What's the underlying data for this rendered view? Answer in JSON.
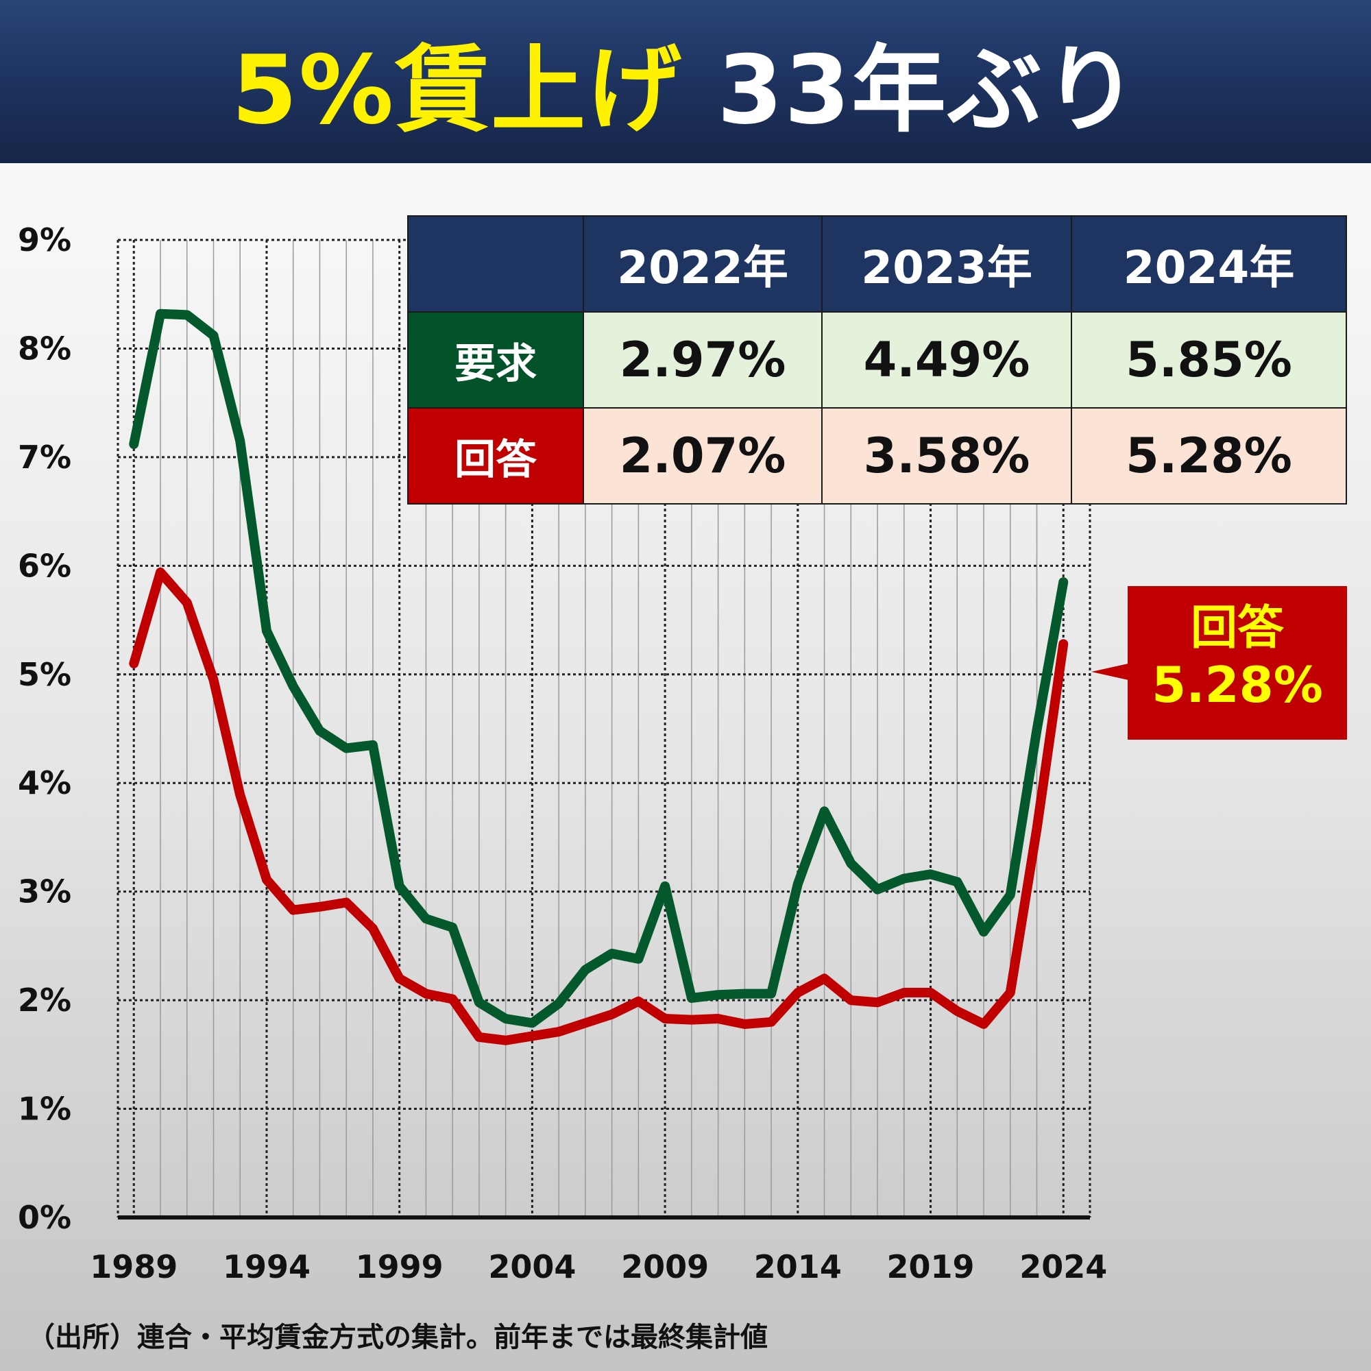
{
  "banner": {
    "title_highlight": "5%賃上げ",
    "title_rest": "33年ぶり"
  },
  "table": {
    "years": [
      "2022年",
      "2023年",
      "2024年"
    ],
    "rows": [
      {
        "label": "要求",
        "values": [
          "2.97%",
          "4.49%",
          "5.85%"
        ]
      },
      {
        "label": "回答",
        "values": [
          "2.07%",
          "3.58%",
          "5.28%"
        ]
      }
    ]
  },
  "callout": {
    "label": "回答",
    "value": "5.28%"
  },
  "source": "（出所）連合・平均賃金方式の集計。前年までは最終集計値",
  "colors": {
    "request": "#03592c",
    "answer": "#c00000",
    "banner": "#1e3461",
    "highlight": "#fff200"
  },
  "chart_data": {
    "type": "line",
    "x": [
      1989,
      1990,
      1991,
      1992,
      1993,
      1994,
      1995,
      1996,
      1997,
      1998,
      1999,
      2000,
      2001,
      2002,
      2003,
      2004,
      2005,
      2006,
      2007,
      2008,
      2009,
      2010,
      2011,
      2012,
      2013,
      2014,
      2015,
      2016,
      2017,
      2018,
      2019,
      2020,
      2021,
      2022,
      2023,
      2024
    ],
    "series": [
      {
        "name": "要求",
        "color": "#03592c",
        "values": [
          7.12,
          8.32,
          8.31,
          8.12,
          7.15,
          5.4,
          4.89,
          4.48,
          4.32,
          4.35,
          3.05,
          2.75,
          2.67,
          1.98,
          1.83,
          1.79,
          1.97,
          2.28,
          2.43,
          2.38,
          3.05,
          2.02,
          2.05,
          2.06,
          2.06,
          3.07,
          3.74,
          3.26,
          3.02,
          3.12,
          3.16,
          3.09,
          2.63,
          2.97,
          4.49,
          5.85
        ]
      },
      {
        "name": "回答",
        "color": "#c00000",
        "values": [
          5.1,
          5.94,
          5.66,
          4.95,
          3.89,
          3.11,
          2.83,
          2.86,
          2.9,
          2.66,
          2.2,
          2.06,
          2.01,
          1.66,
          1.63,
          1.67,
          1.71,
          1.79,
          1.87,
          1.99,
          1.83,
          1.82,
          1.83,
          1.78,
          1.8,
          2.07,
          2.2,
          2.0,
          1.98,
          2.07,
          2.07,
          1.9,
          1.78,
          2.07,
          3.58,
          5.28
        ]
      }
    ],
    "y_ticks": [
      "0%",
      "1%",
      "2%",
      "3%",
      "4%",
      "5%",
      "6%",
      "7%",
      "8%",
      "9%"
    ],
    "x_ticks": [
      "1989",
      "1994",
      "1999",
      "2004",
      "2009",
      "2014",
      "2019",
      "2024"
    ],
    "x_tick_years": [
      1989,
      1994,
      1999,
      2004,
      2009,
      2014,
      2019,
      2024
    ],
    "ylim": [
      0,
      9
    ],
    "grid": true
  }
}
